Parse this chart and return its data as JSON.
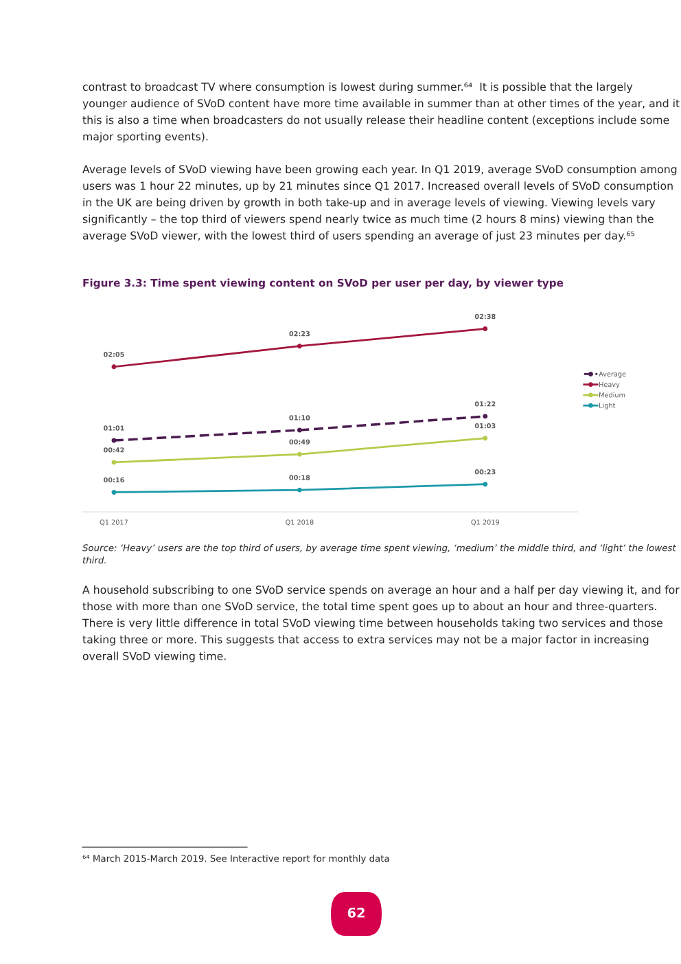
{
  "chart_data": {
    "type": "line",
    "title": "Figure 3.3: Time spent viewing content on SVoD per user per day, by viewer type",
    "categories": [
      "Q1 2017",
      "Q1 2018",
      "Q1 2019"
    ],
    "series": [
      {
        "name": "Average",
        "color": "#4b1c4f",
        "line_style": "dashed",
        "values": [
          61,
          70,
          82
        ],
        "value_labels": [
          "01:01",
          "01:10",
          "01:22"
        ]
      },
      {
        "name": "Heavy",
        "color": "#a3173f",
        "line_style": "solid",
        "values": [
          125,
          143,
          158
        ],
        "value_labels": [
          "02:05",
          "02:23",
          "02:38"
        ]
      },
      {
        "name": "Medium",
        "color": "#b5cc4a",
        "line_style": "solid",
        "values": [
          42,
          49,
          63
        ],
        "value_labels": [
          "00:42",
          "00:49",
          "01:03"
        ]
      },
      {
        "name": "Light",
        "color": "#1b99a8",
        "line_style": "solid",
        "values": [
          16,
          18,
          23
        ],
        "value_labels": [
          "00:16",
          "00:18",
          "00:23"
        ]
      }
    ],
    "tick_labels": "x",
    "marker": "circle",
    "legend": "right",
    "annotations": [
      "contrast to broadcast TV where consumption is lowest during summer.⁶⁴  It is possible that the largely younger audience of SVoD content have more time available in summer than at other times of the year, and it this is also a time when broadcasters do not usually release their headline content (exceptions include some major sporting events).",
      "Average levels of SVoD viewing have been growing each year. In Q1 2019, average SVoD consumption among users was 1 hour 22 minutes, up by 21 minutes since Q1 2017. Increased overall levels of SVoD consumption in the UK are being driven by growth in both take-up and in average levels of viewing. Viewing levels vary significantly – the top third of viewers spend nearly twice as much time (2 hours 8 mins) viewing than the average SVoD viewer, with the lowest third of users spending an average of just 23 minutes per day.⁶⁵",
      "Source: ‘Heavy’ users are the top third of users, by average time spent viewing, ‘medium’ the middle third, and ‘light’ the lowest third.",
      "A household subscribing to one SVoD service spends on average an hour and a half per day viewing it, and for those with more than one SVoD service, the total time spent goes up to about an hour and three-quarters. There is very little difference in total SVoD viewing time between households taking two services and those taking three or more. This suggests that access to extra services may not be a major factor in increasing overall SVoD viewing time.",
      "⁶⁴ March 2015-March 2019. See Interactive report for monthly data",
      "62"
    ]
  }
}
